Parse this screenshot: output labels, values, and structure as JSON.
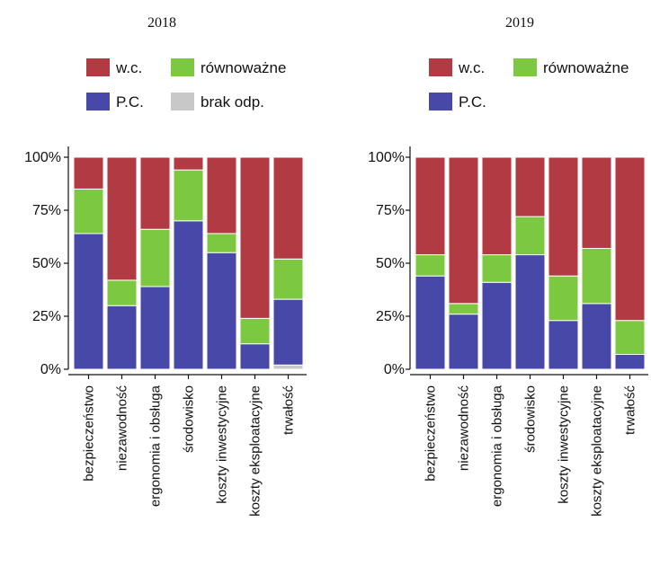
{
  "chart_data": [
    {
      "type": "bar",
      "stacked": true,
      "title": "2018",
      "categories": [
        "bezpieczeństwo",
        "niezawodność",
        "ergonomia i obsługa",
        "środowisko",
        "koszty inwestycyjne",
        "koszty eksploatacyjne",
        "trwałość"
      ],
      "series": [
        {
          "name": "brak odp.",
          "values": [
            0,
            0,
            0,
            0,
            0,
            0,
            2
          ],
          "color": "#c8c8c8"
        },
        {
          "name": "P.C.",
          "values": [
            64,
            30,
            39,
            70,
            55,
            12,
            31
          ],
          "color": "#4848a8"
        },
        {
          "name": "równoważne",
          "values": [
            21,
            12,
            27,
            24,
            9,
            12,
            19
          ],
          "color": "#7cc840"
        },
        {
          "name": "w.c.",
          "values": [
            15,
            58,
            34,
            6,
            36,
            76,
            48
          ],
          "color": "#b23a42"
        }
      ],
      "legend": [
        {
          "label": "w.c.",
          "color": "#b23a42"
        },
        {
          "label": "równoważne",
          "color": "#7cc840"
        },
        {
          "label": "P.C.",
          "color": "#4848a8"
        },
        {
          "label": "brak odp.",
          "color": "#c8c8c8"
        }
      ],
      "ylim": [
        0,
        100
      ],
      "yticks": [
        "0%",
        "25%",
        "50%",
        "75%",
        "100%"
      ],
      "legend_position": "top",
      "grid": false
    },
    {
      "type": "bar",
      "stacked": true,
      "title": "2019",
      "categories": [
        "bezpieczeństwo",
        "niezawodność",
        "ergonomia i obsługa",
        "środowisko",
        "koszty inwestycyjne",
        "koszty eksploatacyjne",
        "trwałość"
      ],
      "series": [
        {
          "name": "P.C.",
          "values": [
            44,
            26,
            41,
            54,
            23,
            31,
            7
          ],
          "color": "#4848a8"
        },
        {
          "name": "równoważne",
          "values": [
            10,
            5,
            13,
            18,
            21,
            26,
            16
          ],
          "color": "#7cc840"
        },
        {
          "name": "w.c.",
          "values": [
            46,
            69,
            46,
            28,
            56,
            43,
            77
          ],
          "color": "#b23a42"
        }
      ],
      "legend": [
        {
          "label": "w.c.",
          "color": "#b23a42"
        },
        {
          "label": "równoważne",
          "color": "#7cc840"
        },
        {
          "label": "P.C.",
          "color": "#4848a8"
        }
      ],
      "ylim": [
        0,
        100
      ],
      "yticks": [
        "0%",
        "25%",
        "50%",
        "75%",
        "100%"
      ],
      "legend_position": "top",
      "grid": false
    }
  ]
}
